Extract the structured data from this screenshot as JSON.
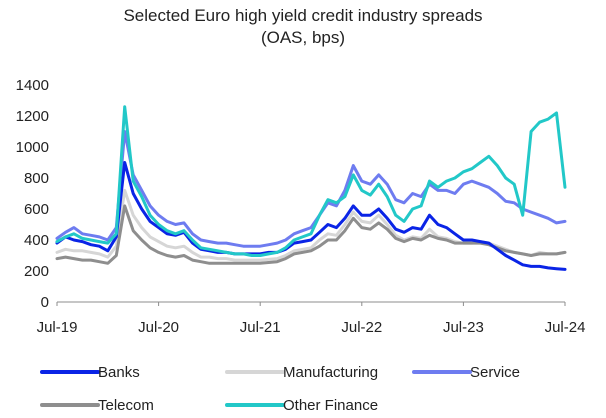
{
  "chart_data": {
    "type": "line",
    "title": "Selected Euro high yield credit industry spreads",
    "subtitle": "(OAS, bps)",
    "xlabel": "",
    "ylabel": "",
    "x_ticks": [
      "Jul-19",
      "Jul-20",
      "Jul-21",
      "Jul-22",
      "Jul-23",
      "Jul-24"
    ],
    "x_range": [
      "2019-07",
      "2024-07"
    ],
    "y_ticks": [
      0,
      200,
      400,
      600,
      800,
      1000,
      1200,
      1400
    ],
    "ylim": [
      0,
      1400
    ],
    "grid": false,
    "legend_position": "bottom",
    "x": [
      "2019-07",
      "2019-08",
      "2019-09",
      "2019-10",
      "2019-11",
      "2019-12",
      "2020-01",
      "2020-02",
      "2020-03",
      "2020-04",
      "2020-05",
      "2020-06",
      "2020-07",
      "2020-08",
      "2020-09",
      "2020-10",
      "2020-11",
      "2020-12",
      "2021-01",
      "2021-02",
      "2021-03",
      "2021-04",
      "2021-05",
      "2021-06",
      "2021-07",
      "2021-08",
      "2021-09",
      "2021-10",
      "2021-11",
      "2021-12",
      "2022-01",
      "2022-02",
      "2022-03",
      "2022-04",
      "2022-05",
      "2022-06",
      "2022-07",
      "2022-08",
      "2022-09",
      "2022-10",
      "2022-11",
      "2022-12",
      "2023-01",
      "2023-02",
      "2023-03",
      "2023-04",
      "2023-05",
      "2023-06",
      "2023-07",
      "2023-08",
      "2023-09",
      "2023-10",
      "2023-11",
      "2023-12",
      "2024-01",
      "2024-02",
      "2024-03",
      "2024-04",
      "2024-05",
      "2024-06",
      "2024-07"
    ],
    "series": [
      {
        "name": "Banks",
        "color": "#0a24e6",
        "values": [
          380,
          420,
          400,
          390,
          370,
          360,
          330,
          420,
          900,
          700,
          600,
          520,
          480,
          440,
          430,
          450,
          380,
          340,
          330,
          320,
          320,
          310,
          310,
          310,
          310,
          320,
          320,
          340,
          380,
          390,
          400,
          450,
          500,
          480,
          540,
          620,
          560,
          560,
          600,
          540,
          470,
          450,
          480,
          470,
          560,
          500,
          480,
          440,
          400,
          400,
          390,
          380,
          340,
          300,
          270,
          240,
          230,
          230,
          220,
          215,
          210
        ]
      },
      {
        "name": "Manufacturing",
        "color": "#d6d6d6",
        "values": [
          320,
          340,
          330,
          330,
          320,
          310,
          290,
          360,
          720,
          560,
          480,
          420,
          390,
          360,
          350,
          360,
          320,
          290,
          290,
          280,
          280,
          270,
          270,
          270,
          270,
          275,
          280,
          300,
          330,
          340,
          350,
          400,
          440,
          430,
          500,
          580,
          520,
          510,
          560,
          500,
          430,
          400,
          420,
          410,
          470,
          420,
          410,
          390,
          380,
          380,
          390,
          380,
          360,
          340,
          320,
          310,
          300,
          320,
          310,
          310,
          320
        ]
      },
      {
        "name": "Service",
        "color": "#6e7cf0",
        "values": [
          410,
          450,
          480,
          440,
          430,
          420,
          400,
          480,
          1100,
          820,
          720,
          620,
          560,
          520,
          500,
          510,
          440,
          400,
          390,
          380,
          380,
          370,
          360,
          360,
          360,
          370,
          380,
          400,
          440,
          460,
          480,
          560,
          640,
          620,
          720,
          880,
          780,
          760,
          820,
          760,
          660,
          640,
          700,
          680,
          760,
          720,
          720,
          700,
          760,
          780,
          760,
          740,
          700,
          650,
          640,
          600,
          580,
          560,
          540,
          510,
          520
        ]
      },
      {
        "name": "Telecom",
        "color": "#8e8e8e",
        "values": [
          280,
          290,
          280,
          270,
          270,
          260,
          250,
          300,
          620,
          460,
          400,
          350,
          320,
          300,
          290,
          300,
          270,
          260,
          250,
          250,
          250,
          250,
          250,
          250,
          250,
          255,
          260,
          280,
          310,
          320,
          330,
          360,
          400,
          400,
          460,
          540,
          480,
          470,
          510,
          470,
          410,
          390,
          410,
          400,
          430,
          410,
          400,
          380,
          380,
          380,
          380,
          370,
          350,
          330,
          320,
          310,
          300,
          310,
          310,
          310,
          320
        ]
      },
      {
        "name": "Other Finance",
        "color": "#22c8c8",
        "values": [
          390,
          420,
          440,
          410,
          400,
          390,
          380,
          440,
          1260,
          780,
          680,
          560,
          500,
          460,
          440,
          460,
          400,
          350,
          340,
          330,
          320,
          310,
          310,
          300,
          300,
          310,
          320,
          350,
          400,
          420,
          440,
          560,
          660,
          640,
          680,
          820,
          720,
          690,
          760,
          680,
          560,
          520,
          600,
          620,
          780,
          740,
          780,
          800,
          840,
          860,
          900,
          940,
          880,
          800,
          760,
          560,
          1100,
          1160,
          1180,
          1220,
          740
        ]
      }
    ]
  }
}
